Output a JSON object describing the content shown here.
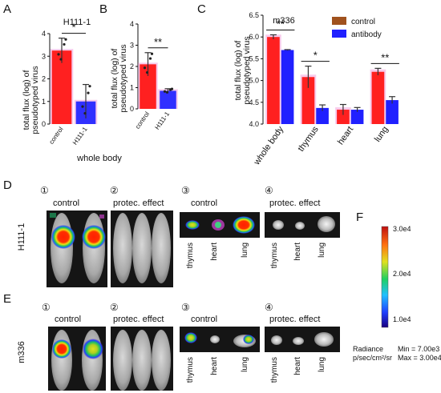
{
  "panel_letters": {
    "A": "A",
    "B": "B",
    "C": "C",
    "D": "D",
    "E": "E",
    "F": "F"
  },
  "panel_a": {
    "title": "H111-1",
    "caption": "whole body"
  },
  "panel_c": {
    "title": "m336"
  },
  "chart_data": [
    {
      "type": "bar",
      "panel": "A",
      "title": "H111-1",
      "categories": [
        "control",
        "H111-1"
      ],
      "values": [
        3.25,
        1.0
      ],
      "errors": [
        0.55,
        0.75
      ],
      "colors": [
        "#ff2020",
        "#3030ff"
      ],
      "ylabel": "total flux (log) of pseudotyped virus",
      "ylim": [
        0,
        4
      ],
      "yticks": [
        "0",
        "1",
        "2",
        "3",
        "4"
      ],
      "significance": "*"
    },
    {
      "type": "bar",
      "panel": "B",
      "categories": [
        "control",
        "H111-1"
      ],
      "values": [
        2.1,
        0.85
      ],
      "errors": [
        0.55,
        0.1
      ],
      "colors": [
        "#ff2020",
        "#3030ff"
      ],
      "ylabel": "total flux (log) of pseudotyped virus",
      "ylim": [
        0,
        4
      ],
      "yticks": [
        "0",
        "1",
        "2",
        "3",
        "4"
      ],
      "significance": "**"
    },
    {
      "type": "bar",
      "panel": "C",
      "title": "m336",
      "categories": [
        "whole body",
        "thymus",
        "heart",
        "lung"
      ],
      "series": [
        {
          "name": "control",
          "values": [
            6.0,
            5.08,
            4.33,
            5.2
          ],
          "errors": [
            0.05,
            0.25,
            0.12,
            0.08
          ],
          "color": "#a0521e"
        },
        {
          "name": "antibody",
          "values": [
            5.7,
            4.37,
            4.33,
            4.55
          ],
          "errors": [
            0.01,
            0.07,
            0.05,
            0.08
          ],
          "color": "#2020ff"
        }
      ],
      "ylabel": "total flux (log) of pseudotyped virus",
      "ylim": [
        4.0,
        6.5
      ],
      "yticks": [
        "4.0",
        "4.5",
        "5.0",
        "5.5",
        "6.0",
        "6.5"
      ],
      "significance": [
        "**",
        "*",
        "",
        "**"
      ],
      "legend_position": "top-right"
    }
  ],
  "row_d": {
    "label": "H111-1",
    "panels": [
      {
        "number": "①",
        "title": "control"
      },
      {
        "number": "②",
        "title": "protec. effect"
      },
      {
        "number": "③",
        "title": "control"
      },
      {
        "number": "④",
        "title": "protec. effect"
      }
    ],
    "organ_labels": [
      "thymus",
      "heart",
      "lung"
    ]
  },
  "row_e": {
    "label": "m336",
    "panels": [
      {
        "number": "①",
        "title": "control"
      },
      {
        "number": "②",
        "title": "protec. effect"
      },
      {
        "number": "③",
        "title": "control"
      },
      {
        "number": "④",
        "title": "protec. effect"
      }
    ],
    "organ_labels": [
      "thymus",
      "heart",
      "lung"
    ]
  },
  "colorbar": {
    "ticks": [
      "3.0e4",
      "2.0e4",
      "1.0e4"
    ],
    "radiance_label_1": "Radiance",
    "radiance_label_2": "p/sec/cm²/sr",
    "min_text": "Min = 7.00e3",
    "max_text": "Max = 3.00e4"
  }
}
